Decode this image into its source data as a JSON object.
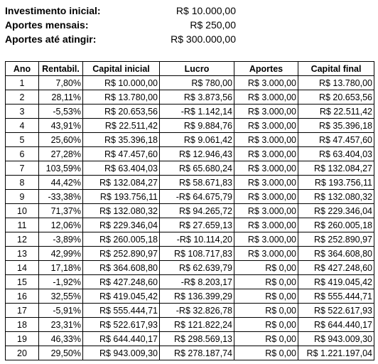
{
  "summary": {
    "rows": [
      {
        "label": "Investimento inicial:",
        "value": "R$ 10.000,00"
      },
      {
        "label": "Aportes mensais:",
        "value": "R$ 250,00"
      },
      {
        "label": "Aportes até atingir:",
        "value": "R$ 300.000,00"
      }
    ]
  },
  "table": {
    "headers": [
      "Ano",
      "Rentabil.",
      "Capital inicial",
      "Lucro",
      "Aportes",
      "Capital final"
    ],
    "rows": [
      [
        "1",
        "7,80%",
        "R$ 10.000,00",
        "R$ 780,00",
        "R$ 3.000,00",
        "R$ 13.780,00"
      ],
      [
        "2",
        "28,11%",
        "R$ 13.780,00",
        "R$ 3.873,56",
        "R$ 3.000,00",
        "R$ 20.653,56"
      ],
      [
        "3",
        "-5,53%",
        "R$ 20.653,56",
        "-R$ 1.142,14",
        "R$ 3.000,00",
        "R$ 22.511,42"
      ],
      [
        "4",
        "43,91%",
        "R$ 22.511,42",
        "R$ 9.884,76",
        "R$ 3.000,00",
        "R$ 35.396,18"
      ],
      [
        "5",
        "25,60%",
        "R$ 35.396,18",
        "R$ 9.061,42",
        "R$ 3.000,00",
        "R$ 47.457,60"
      ],
      [
        "6",
        "27,28%",
        "R$ 47.457,60",
        "R$ 12.946,43",
        "R$ 3.000,00",
        "R$ 63.404,03"
      ],
      [
        "7",
        "103,59%",
        "R$ 63.404,03",
        "R$ 65.680,24",
        "R$ 3.000,00",
        "R$ 132.084,27"
      ],
      [
        "8",
        "44,42%",
        "R$ 132.084,27",
        "R$ 58.671,83",
        "R$ 3.000,00",
        "R$ 193.756,11"
      ],
      [
        "9",
        "-33,38%",
        "R$ 193.756,11",
        "-R$ 64.675,79",
        "R$ 3.000,00",
        "R$ 132.080,32"
      ],
      [
        "10",
        "71,37%",
        "R$ 132.080,32",
        "R$ 94.265,72",
        "R$ 3.000,00",
        "R$ 229.346,04"
      ],
      [
        "11",
        "12,06%",
        "R$ 229.346,04",
        "R$ 27.659,13",
        "R$ 3.000,00",
        "R$ 260.005,18"
      ],
      [
        "12",
        "-3,89%",
        "R$ 260.005,18",
        "-R$ 10.114,20",
        "R$ 3.000,00",
        "R$ 252.890,97"
      ],
      [
        "13",
        "42,99%",
        "R$ 252.890,97",
        "R$ 108.717,83",
        "R$ 3.000,00",
        "R$ 364.608,80"
      ],
      [
        "14",
        "17,18%",
        "R$ 364.608,80",
        "R$ 62.639,79",
        "R$ 0,00",
        "R$ 427.248,60"
      ],
      [
        "15",
        "-1,92%",
        "R$ 427.248,60",
        "-R$ 8.203,17",
        "R$ 0,00",
        "R$ 419.045,42"
      ],
      [
        "16",
        "32,55%",
        "R$ 419.045,42",
        "R$ 136.399,29",
        "R$ 0,00",
        "R$ 555.444,71"
      ],
      [
        "17",
        "-5,91%",
        "R$ 555.444,71",
        "-R$ 32.826,78",
        "R$ 0,00",
        "R$ 522.617,93"
      ],
      [
        "18",
        "23,31%",
        "R$ 522.617,93",
        "R$ 121.822,24",
        "R$ 0,00",
        "R$ 644.440,17"
      ],
      [
        "19",
        "46,33%",
        "R$ 644.440,17",
        "R$ 298.569,13",
        "R$ 0,00",
        "R$ 943.009,30"
      ],
      [
        "20",
        "29,50%",
        "R$ 943.009,30",
        "R$ 278.187,74",
        "R$ 0,00",
        "R$ 1.221.197,04"
      ]
    ]
  }
}
